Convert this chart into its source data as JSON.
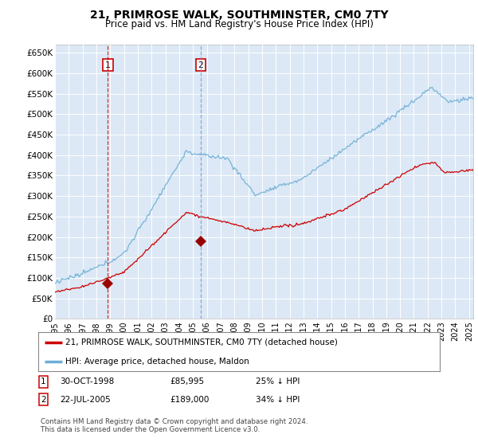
{
  "title": "21, PRIMROSE WALK, SOUTHMINSTER, CM0 7TY",
  "subtitle": "Price paid vs. HM Land Registry's House Price Index (HPI)",
  "ylim": [
    0,
    670000
  ],
  "yticks": [
    0,
    50000,
    100000,
    150000,
    200000,
    250000,
    300000,
    350000,
    400000,
    450000,
    500000,
    550000,
    600000,
    650000
  ],
  "ytick_labels": [
    "£0",
    "£50K",
    "£100K",
    "£150K",
    "£200K",
    "£250K",
    "£300K",
    "£350K",
    "£400K",
    "£450K",
    "£500K",
    "£550K",
    "£600K",
    "£650K"
  ],
  "bg_color": "#dce8f5",
  "grid_color": "#ffffff",
  "line_color_hpi": "#6baed6",
  "line_color_price": "#cc0000",
  "marker_color": "#990000",
  "purchase1_date": 1998.83,
  "purchase1_price": 85995,
  "purchase1_label": "1",
  "purchase2_date": 2005.55,
  "purchase2_price": 189000,
  "purchase2_label": "2",
  "legend_price_label": "21, PRIMROSE WALK, SOUTHMINSTER, CM0 7TY (detached house)",
  "legend_hpi_label": "HPI: Average price, detached house, Maldon",
  "footer": "Contains HM Land Registry data © Crown copyright and database right 2024.\nThis data is licensed under the Open Government Licence v3.0.",
  "xmin": 1995.0,
  "xmax": 2025.3
}
